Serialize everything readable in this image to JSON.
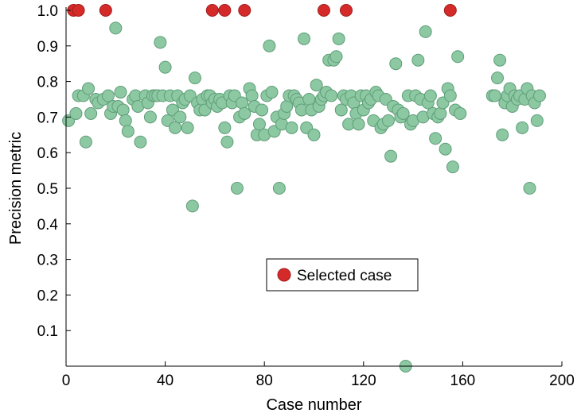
{
  "chart_data": {
    "type": "scatter",
    "xlabel": "Case number",
    "ylabel": "Precision metric",
    "xlim": [
      0,
      200
    ],
    "ylim": [
      0.0,
      1.0
    ],
    "x_ticks": [
      0,
      40,
      80,
      120,
      160,
      200
    ],
    "x_tick_labels": [
      "0",
      "40",
      "80",
      "120",
      "160",
      "200"
    ],
    "y_ticks": [
      0.1,
      0.2,
      0.3,
      0.4,
      0.5,
      0.6,
      0.7,
      0.8,
      0.9,
      1.0
    ],
    "y_tick_labels": [
      "0.1",
      "0.2",
      "0.3",
      "0.4",
      "0.5",
      "0.6",
      "0.7",
      "0.8",
      "0.9",
      "1.0"
    ],
    "grid": false,
    "legend": {
      "position": "center",
      "entries": [
        "Selected case"
      ]
    },
    "series": [
      {
        "color": "#8cc9a3",
        "edge_color": "#5f9d78",
        "points": [
          [
            1,
            0.69
          ],
          [
            4,
            0.71
          ],
          [
            5,
            0.76
          ],
          [
            7,
            0.76
          ],
          [
            8,
            0.63
          ],
          [
            9,
            0.78
          ],
          [
            10,
            0.71
          ],
          [
            12,
            0.75
          ],
          [
            13,
            0.74
          ],
          [
            15,
            0.75
          ],
          [
            17,
            0.76
          ],
          [
            18,
            0.71
          ],
          [
            19,
            0.73
          ],
          [
            20,
            0.95
          ],
          [
            21,
            0.73
          ],
          [
            22,
            0.77
          ],
          [
            23,
            0.72
          ],
          [
            24,
            0.69
          ],
          [
            25,
            0.66
          ],
          [
            27,
            0.75
          ],
          [
            28,
            0.76
          ],
          [
            29,
            0.73
          ],
          [
            30,
            0.63
          ],
          [
            32,
            0.76
          ],
          [
            33,
            0.74
          ],
          [
            34,
            0.7
          ],
          [
            35,
            0.76
          ],
          [
            36,
            0.76
          ],
          [
            37,
            0.76
          ],
          [
            38,
            0.91
          ],
          [
            39,
            0.76
          ],
          [
            40,
            0.84
          ],
          [
            41,
            0.69
          ],
          [
            42,
            0.76
          ],
          [
            43,
            0.72
          ],
          [
            44,
            0.67
          ],
          [
            45,
            0.76
          ],
          [
            46,
            0.7
          ],
          [
            47,
            0.74
          ],
          [
            48,
            0.75
          ],
          [
            49,
            0.67
          ],
          [
            50,
            0.76
          ],
          [
            51,
            0.45
          ],
          [
            52,
            0.81
          ],
          [
            53,
            0.74
          ],
          [
            54,
            0.72
          ],
          [
            55,
            0.75
          ],
          [
            56,
            0.72
          ],
          [
            57,
            0.76
          ],
          [
            58,
            0.76
          ],
          [
            59,
            0.74
          ],
          [
            60,
            0.75
          ],
          [
            61,
            0.73
          ],
          [
            62,
            0.75
          ],
          [
            63,
            0.74
          ],
          [
            64,
            0.67
          ],
          [
            65,
            0.63
          ],
          [
            66,
            0.76
          ],
          [
            67,
            0.74
          ],
          [
            68,
            0.76
          ],
          [
            69,
            0.5
          ],
          [
            70,
            0.7
          ],
          [
            71,
            0.74
          ],
          [
            72,
            0.71
          ],
          [
            74,
            0.78
          ],
          [
            75,
            0.76
          ],
          [
            76,
            0.73
          ],
          [
            77,
            0.65
          ],
          [
            78,
            0.68
          ],
          [
            79,
            0.72
          ],
          [
            80,
            0.65
          ],
          [
            81,
            0.76
          ],
          [
            82,
            0.9
          ],
          [
            83,
            0.77
          ],
          [
            84,
            0.66
          ],
          [
            85,
            0.7
          ],
          [
            86,
            0.5
          ],
          [
            87,
            0.68
          ],
          [
            88,
            0.71
          ],
          [
            89,
            0.73
          ],
          [
            90,
            0.76
          ],
          [
            91,
            0.67
          ],
          [
            92,
            0.76
          ],
          [
            93,
            0.75
          ],
          [
            94,
            0.74
          ],
          [
            95,
            0.72
          ],
          [
            96,
            0.92
          ],
          [
            97,
            0.67
          ],
          [
            98,
            0.75
          ],
          [
            99,
            0.72
          ],
          [
            100,
            0.65
          ],
          [
            101,
            0.79
          ],
          [
            102,
            0.73
          ],
          [
            103,
            0.75
          ],
          [
            104,
            0.76
          ],
          [
            105,
            0.77
          ],
          [
            106,
            0.86
          ],
          [
            107,
            0.76
          ],
          [
            108,
            0.86
          ],
          [
            109,
            0.87
          ],
          [
            110,
            0.92
          ],
          [
            111,
            0.72
          ],
          [
            112,
            0.76
          ],
          [
            113,
            0.75
          ],
          [
            114,
            0.68
          ],
          [
            115,
            0.76
          ],
          [
            116,
            0.74
          ],
          [
            117,
            0.71
          ],
          [
            118,
            0.68
          ],
          [
            119,
            0.76
          ],
          [
            120,
            0.72
          ],
          [
            121,
            0.76
          ],
          [
            122,
            0.74
          ],
          [
            123,
            0.75
          ],
          [
            124,
            0.69
          ],
          [
            125,
            0.77
          ],
          [
            126,
            0.76
          ],
          [
            127,
            0.67
          ],
          [
            128,
            0.68
          ],
          [
            129,
            0.75
          ],
          [
            130,
            0.69
          ],
          [
            131,
            0.59
          ],
          [
            132,
            0.73
          ],
          [
            133,
            0.85
          ],
          [
            134,
            0.72
          ],
          [
            135,
            0.7
          ],
          [
            136,
            0.71
          ],
          [
            137,
            0.0
          ],
          [
            138,
            0.76
          ],
          [
            139,
            0.68
          ],
          [
            140,
            0.69
          ],
          [
            141,
            0.76
          ],
          [
            142,
            0.86
          ],
          [
            143,
            0.75
          ],
          [
            144,
            0.7
          ],
          [
            145,
            0.94
          ],
          [
            146,
            0.74
          ],
          [
            147,
            0.76
          ],
          [
            148,
            0.71
          ],
          [
            149,
            0.64
          ],
          [
            150,
            0.7
          ],
          [
            151,
            0.71
          ],
          [
            152,
            0.74
          ],
          [
            153,
            0.61
          ],
          [
            154,
            0.78
          ],
          [
            155,
            0.76
          ],
          [
            156,
            0.56
          ],
          [
            157,
            0.72
          ],
          [
            158,
            0.87
          ],
          [
            159,
            0.71
          ],
          [
            172,
            0.76
          ],
          [
            173,
            0.76
          ],
          [
            174,
            0.81
          ],
          [
            175,
            0.86
          ],
          [
            176,
            0.65
          ],
          [
            177,
            0.74
          ],
          [
            178,
            0.76
          ],
          [
            179,
            0.78
          ],
          [
            180,
            0.73
          ],
          [
            181,
            0.76
          ],
          [
            182,
            0.75
          ],
          [
            183,
            0.76
          ],
          [
            184,
            0.67
          ],
          [
            185,
            0.75
          ],
          [
            186,
            0.78
          ],
          [
            187,
            0.5
          ],
          [
            188,
            0.76
          ],
          [
            189,
            0.74
          ],
          [
            190,
            0.69
          ],
          [
            191,
            0.76
          ]
        ]
      },
      {
        "name": "Selected case",
        "color": "#d42a2a",
        "edge_color": "#a21c1c",
        "points": [
          [
            3,
            1.0
          ],
          [
            5,
            1.0
          ],
          [
            16,
            1.0
          ],
          [
            59,
            1.0
          ],
          [
            64,
            1.0
          ],
          [
            72,
            1.0
          ],
          [
            104,
            1.0
          ],
          [
            113,
            1.0
          ],
          [
            155,
            1.0
          ]
        ]
      }
    ]
  }
}
